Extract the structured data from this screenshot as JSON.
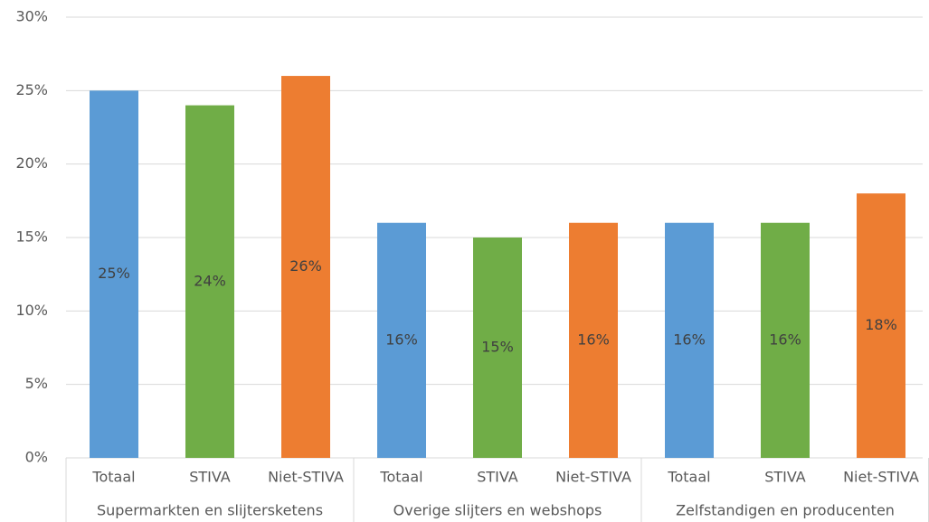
{
  "chart_data": {
    "type": "bar",
    "groups": [
      {
        "name": "Supermarkten en slijtersketens",
        "categories": [
          "Totaal",
          "STIVA",
          "Niet-STIVA"
        ],
        "values": [
          25,
          24,
          26
        ],
        "value_labels": [
          "25%",
          "24%",
          "26%"
        ],
        "colors": [
          "#5b9bd5",
          "#70ad47",
          "#ed7d31"
        ]
      },
      {
        "name": "Overige slijters en webshops",
        "categories": [
          "Totaal",
          "STIVA",
          "Niet-STIVA"
        ],
        "values": [
          16,
          15,
          16
        ],
        "value_labels": [
          "16%",
          "15%",
          "16%"
        ],
        "colors": [
          "#5b9bd5",
          "#70ad47",
          "#ed7d31"
        ]
      },
      {
        "name": "Zelfstandigen en producenten",
        "categories": [
          "Totaal",
          "STIVA",
          "Niet-STIVA"
        ],
        "values": [
          16,
          16,
          18
        ],
        "value_labels": [
          "16%",
          "16%",
          "18%"
        ],
        "colors": [
          "#5b9bd5",
          "#70ad47",
          "#ed7d31"
        ]
      }
    ],
    "ylim": [
      0,
      30
    ],
    "yticks": [
      {
        "value": 0,
        "label": "0%"
      },
      {
        "value": 5,
        "label": "5%"
      },
      {
        "value": 10,
        "label": "10%"
      },
      {
        "value": 15,
        "label": "15%"
      },
      {
        "value": 20,
        "label": "20%"
      },
      {
        "value": 25,
        "label": "25%"
      },
      {
        "value": 30,
        "label": "30%"
      }
    ],
    "grid": true
  }
}
